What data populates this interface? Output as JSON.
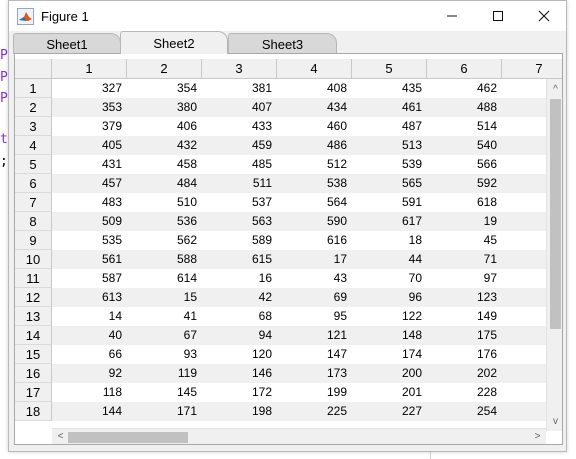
{
  "background_fragments": [
    "P",
    "P",
    "P",
    "t",
    ";"
  ],
  "window": {
    "title": "Figure 1",
    "controls": {
      "minimize": "minimize-icon",
      "maximize": "maximize-icon",
      "close": "close-icon"
    }
  },
  "tabs": [
    {
      "label": "Sheet1",
      "active": false
    },
    {
      "label": "Sheet2",
      "active": true
    },
    {
      "label": "Sheet3",
      "active": false
    }
  ],
  "table": {
    "column_headers": [
      "1",
      "2",
      "3",
      "4",
      "5",
      "6",
      "7"
    ],
    "row_headers": [
      "1",
      "2",
      "3",
      "4",
      "5",
      "6",
      "7",
      "8",
      "9",
      "10",
      "11",
      "12",
      "13",
      "14",
      "15",
      "16",
      "17",
      "18"
    ],
    "rows": [
      [
        "327",
        "354",
        "381",
        "408",
        "435",
        "462",
        ""
      ],
      [
        "353",
        "380",
        "407",
        "434",
        "461",
        "488",
        ""
      ],
      [
        "379",
        "406",
        "433",
        "460",
        "487",
        "514",
        ""
      ],
      [
        "405",
        "432",
        "459",
        "486",
        "513",
        "540",
        ""
      ],
      [
        "431",
        "458",
        "485",
        "512",
        "539",
        "566",
        ""
      ],
      [
        "457",
        "484",
        "511",
        "538",
        "565",
        "592",
        ""
      ],
      [
        "483",
        "510",
        "537",
        "564",
        "591",
        "618",
        ""
      ],
      [
        "509",
        "536",
        "563",
        "590",
        "617",
        "19",
        ""
      ],
      [
        "535",
        "562",
        "589",
        "616",
        "18",
        "45",
        ""
      ],
      [
        "561",
        "588",
        "615",
        "17",
        "44",
        "71",
        ""
      ],
      [
        "587",
        "614",
        "16",
        "43",
        "70",
        "97",
        ""
      ],
      [
        "613",
        "15",
        "42",
        "69",
        "96",
        "123",
        ""
      ],
      [
        "14",
        "41",
        "68",
        "95",
        "122",
        "149",
        ""
      ],
      [
        "40",
        "67",
        "94",
        "121",
        "148",
        "175",
        ""
      ],
      [
        "66",
        "93",
        "120",
        "147",
        "174",
        "176",
        ""
      ],
      [
        "92",
        "119",
        "146",
        "173",
        "200",
        "202",
        ""
      ],
      [
        "118",
        "145",
        "172",
        "199",
        "201",
        "228",
        ""
      ],
      [
        "144",
        "171",
        "198",
        "225",
        "227",
        "254",
        ""
      ]
    ]
  },
  "scrollbars": {
    "up_arrow": "^",
    "down_arrow": "v",
    "left_arrow": "<",
    "right_arrow": ">"
  }
}
